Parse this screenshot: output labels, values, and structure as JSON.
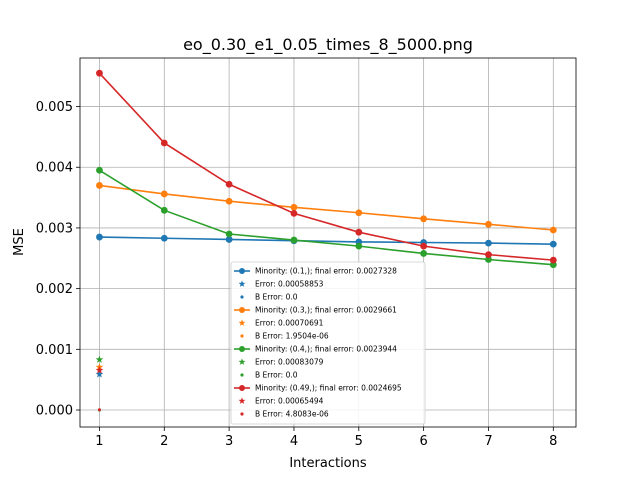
{
  "chart_data": {
    "type": "line",
    "title": "eo_0.30_e1_0.05_times_8_5000.png",
    "xlabel": "Interactions",
    "ylabel": "MSE",
    "xlim": [
      0.7,
      8.35
    ],
    "ylim": [
      -0.00028,
      0.0058
    ],
    "x_ticks": [
      1,
      2,
      3,
      4,
      5,
      6,
      7,
      8
    ],
    "y_ticks": [
      0.0,
      0.001,
      0.002,
      0.003,
      0.004,
      0.005
    ],
    "y_tick_labels": [
      "0.000",
      "0.001",
      "0.002",
      "0.003",
      "0.004",
      "0.005"
    ],
    "grid": true,
    "legend_position": "lower-center",
    "x": [
      1,
      2,
      3,
      4,
      5,
      6,
      7,
      8
    ],
    "series": [
      {
        "name": "Minority: (0.1,); final error: 0.0027328",
        "color": "#1f77b4",
        "values": [
          0.00285,
          0.00283,
          0.00281,
          0.00279,
          0.00277,
          0.00276,
          0.00275,
          0.0027328
        ],
        "error_label": "Error: 0.00058853",
        "error_value": 0.00058853,
        "b_error_label": "B Error: 0.0",
        "b_error_value": 0.0
      },
      {
        "name": "Minority: (0.3,); final error: 0.0029661",
        "color": "#ff7f0e",
        "values": [
          0.0037,
          0.00356,
          0.00344,
          0.00334,
          0.00325,
          0.00315,
          0.00306,
          0.0029661
        ],
        "error_label": "Error: 0.00070691",
        "error_value": 0.00070691,
        "b_error_label": "B Error: 1.9504e-06",
        "b_error_value": 1.9504e-06
      },
      {
        "name": "Minority: (0.4,); final error: 0.0023944",
        "color": "#2ca02c",
        "values": [
          0.00395,
          0.00329,
          0.0029,
          0.0028,
          0.0027,
          0.00258,
          0.00248,
          0.0023944
        ],
        "error_label": "Error: 0.00083079",
        "error_value": 0.00083079,
        "b_error_label": "B Error: 0.0",
        "b_error_value": 0.0
      },
      {
        "name": "Minority: (0.49,); final error: 0.0024695",
        "color": "#d62728",
        "values": [
          0.00555,
          0.0044,
          0.00372,
          0.00324,
          0.00293,
          0.0027,
          0.00256,
          0.0024695
        ],
        "error_label": "Error: 0.00065494",
        "error_value": 0.00065494,
        "b_error_label": "B Error: 4.8083e-06",
        "b_error_value": 4.8083e-06
      }
    ]
  }
}
